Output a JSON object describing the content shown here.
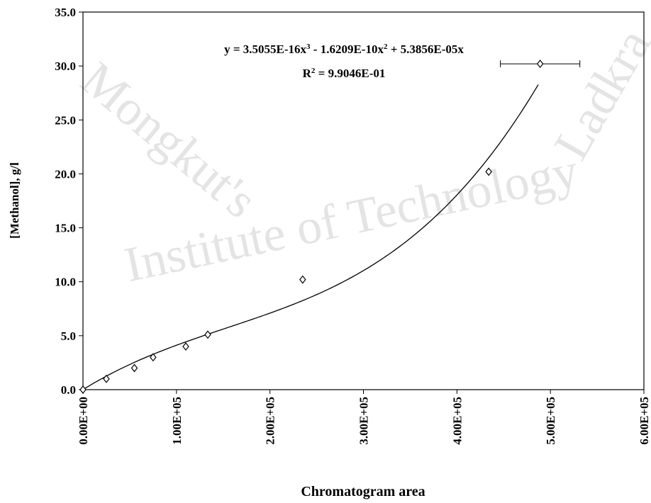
{
  "chart_data": {
    "type": "scatter",
    "xlabel": "Chromatogram area",
    "ylabel": "[Methanol], g/l",
    "watermark": [
      "Mongkut's",
      "Institute of Technology",
      "Ladkra"
    ],
    "xlim": [
      0,
      600000
    ],
    "ylim": [
      0,
      35
    ],
    "xticks": [
      {
        "value": 0,
        "label": "0.00E+00"
      },
      {
        "value": 100000,
        "label": "1.00E+05"
      },
      {
        "value": 200000,
        "label": "2.00E+05"
      },
      {
        "value": 300000,
        "label": "3.00E+05"
      },
      {
        "value": 400000,
        "label": "4.00E+05"
      },
      {
        "value": 500000,
        "label": "5.00E+05"
      },
      {
        "value": 600000,
        "label": "6.00E+05"
      }
    ],
    "yticks": [
      {
        "value": 0,
        "label": "0.0"
      },
      {
        "value": 5,
        "label": "5.0"
      },
      {
        "value": 10,
        "label": "10.0"
      },
      {
        "value": 15,
        "label": "15.0"
      },
      {
        "value": 20,
        "label": "20.0"
      },
      {
        "value": 25,
        "label": "25.0"
      },
      {
        "value": 30,
        "label": "30.0"
      },
      {
        "value": 35,
        "label": "35.0"
      }
    ],
    "series": [
      {
        "color": "#000000",
        "x": [
          0,
          25000,
          55000,
          75000,
          110000,
          133500,
          235000,
          434000,
          489000
        ],
        "values": [
          0,
          1.0,
          2.0,
          3.0,
          4.0,
          5.1,
          10.2,
          20.2,
          30.2
        ],
        "x_error": [
          null,
          null,
          null,
          null,
          null,
          null,
          null,
          null,
          42500
        ]
      }
    ],
    "trendline": {
      "coefficients": [
        3.5055e-16,
        -1.6209e-10,
        5.3856e-05
      ],
      "xlim": [
        0,
        487000
      ],
      "equation": [
        "y = 3.5055E-16x",
        "3",
        " - 1.6209E-10x",
        "2",
        " + 5.3856E-05x"
      ],
      "r2": [
        "R",
        "2",
        " = 9.9046E-01"
      ]
    }
  }
}
